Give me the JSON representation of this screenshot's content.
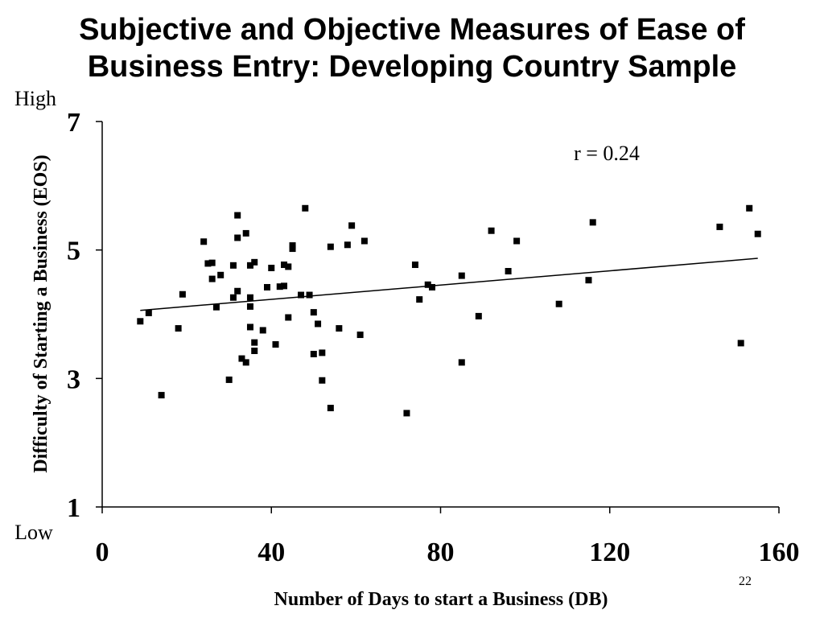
{
  "title_line1": "Subjective and Objective Measures of Ease of",
  "title_line2": "Business Entry:  Developing Country Sample",
  "page_number": "22",
  "chart_data": {
    "type": "scatter",
    "title": "Subjective and Objective Measures of Ease of Business Entry:  Developing Country Sample",
    "xlabel": "Number of Days to start a Business (DB)",
    "ylabel": "Difficulty of Starting a Business (EOS)",
    "y_high_label": "High",
    "y_low_label": "Low",
    "annotation": "r = 0.24",
    "xlim": [
      0,
      160
    ],
    "ylim": [
      1,
      7
    ],
    "x_ticks": [
      "0",
      "40",
      "80",
      "120",
      "160"
    ],
    "y_ticks": [
      "1",
      "3",
      "5",
      "7"
    ],
    "trendline": {
      "x": [
        9,
        155
      ],
      "y": [
        4.06,
        4.87
      ]
    },
    "points": [
      [
        9,
        3.89
      ],
      [
        11,
        4.02
      ],
      [
        14,
        2.74
      ],
      [
        18,
        3.78
      ],
      [
        19,
        4.31
      ],
      [
        24,
        5.13
      ],
      [
        25,
        4.79
      ],
      [
        26,
        4.8
      ],
      [
        26,
        4.55
      ],
      [
        27,
        4.11
      ],
      [
        28,
        4.61
      ],
      [
        30,
        2.98
      ],
      [
        31,
        4.26
      ],
      [
        31,
        4.76
      ],
      [
        32,
        4.36
      ],
      [
        32,
        5.19
      ],
      [
        32,
        5.54
      ],
      [
        33,
        3.31
      ],
      [
        34,
        5.26
      ],
      [
        34,
        3.25
      ],
      [
        35,
        4.76
      ],
      [
        35,
        4.26
      ],
      [
        35,
        4.12
      ],
      [
        35,
        3.8
      ],
      [
        36,
        4.81
      ],
      [
        36,
        3.56
      ],
      [
        36,
        3.43
      ],
      [
        38,
        3.75
      ],
      [
        39,
        4.42
      ],
      [
        40,
        4.72
      ],
      [
        41,
        3.53
      ],
      [
        42,
        4.43
      ],
      [
        43,
        4.44
      ],
      [
        43,
        4.77
      ],
      [
        44,
        4.74
      ],
      [
        44,
        3.95
      ],
      [
        45,
        5.07
      ],
      [
        45,
        5.02
      ],
      [
        47,
        4.3
      ],
      [
        48,
        5.65
      ],
      [
        49,
        4.3
      ],
      [
        50,
        4.03
      ],
      [
        50,
        3.38
      ],
      [
        51,
        3.85
      ],
      [
        52,
        3.4
      ],
      [
        52,
        2.97
      ],
      [
        54,
        2.54
      ],
      [
        54,
        5.05
      ],
      [
        56,
        3.78
      ],
      [
        58,
        5.08
      ],
      [
        59,
        5.38
      ],
      [
        61,
        3.68
      ],
      [
        62,
        5.14
      ],
      [
        72,
        2.46
      ],
      [
        74,
        4.77
      ],
      [
        75,
        4.23
      ],
      [
        77,
        4.46
      ],
      [
        78,
        4.42
      ],
      [
        85,
        4.6
      ],
      [
        85,
        3.25
      ],
      [
        89,
        3.97
      ],
      [
        92,
        5.3
      ],
      [
        96,
        4.67
      ],
      [
        98,
        5.14
      ],
      [
        108,
        4.16
      ],
      [
        115,
        4.53
      ],
      [
        116,
        5.43
      ],
      [
        146,
        5.36
      ],
      [
        151,
        3.55
      ],
      [
        153,
        5.65
      ],
      [
        155,
        5.25
      ]
    ],
    "grid": false,
    "legend": "none"
  }
}
